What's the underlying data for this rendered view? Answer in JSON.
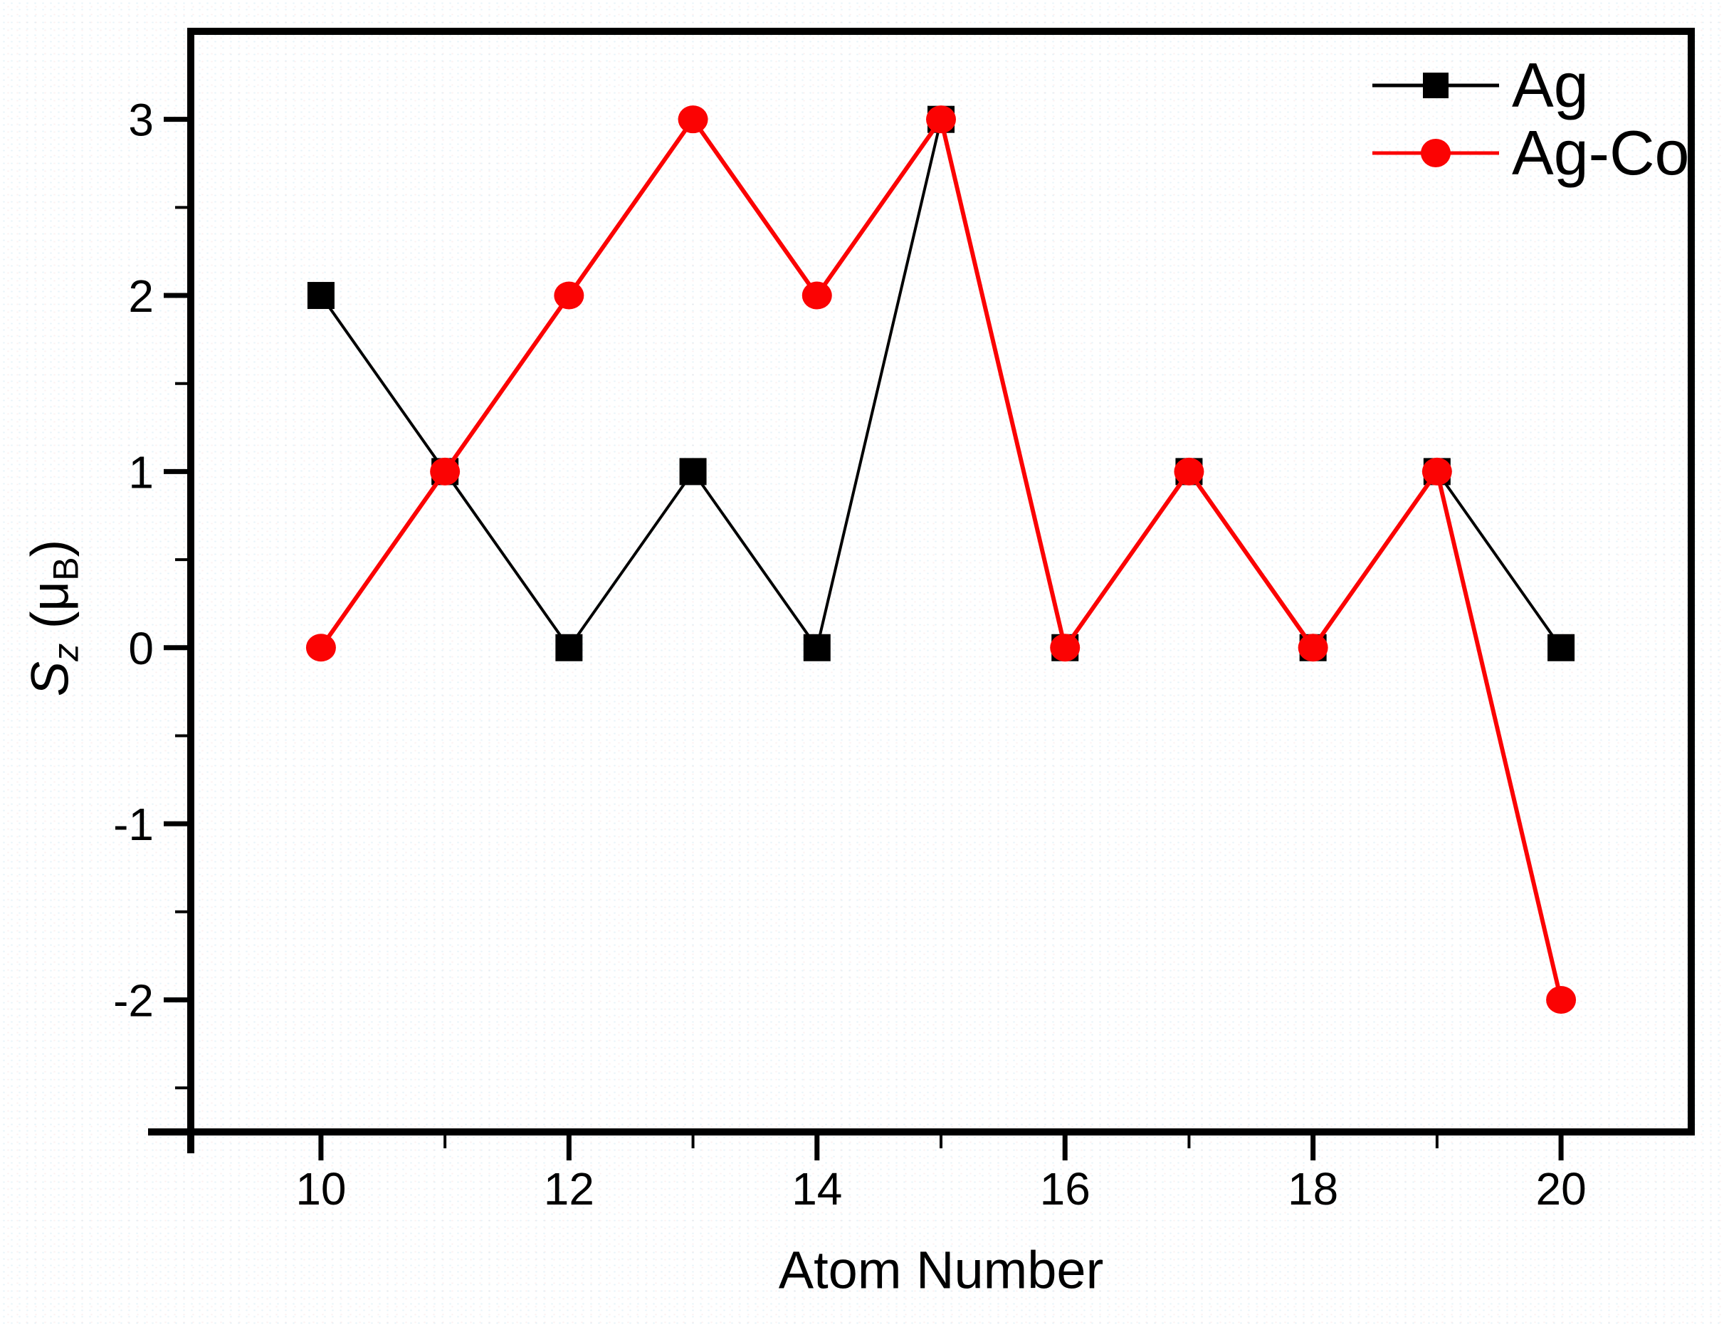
{
  "chart_data": {
    "type": "line",
    "title": "",
    "xlabel": "Atom Number",
    "ylabel": "Sz (μB)",
    "ylabel_parts": {
      "symbol": "S",
      "symbol_sub": "z",
      "unit_open": " (",
      "unit_mu": "μ",
      "unit_sub": "B",
      "unit_close": ")"
    },
    "x": [
      10,
      11,
      12,
      13,
      14,
      15,
      16,
      17,
      18,
      19,
      20
    ],
    "series": [
      {
        "name": "Ag",
        "color": "#000000",
        "marker": "square",
        "line_width": 4,
        "values": [
          2,
          1,
          0,
          1,
          0,
          3,
          0,
          1,
          0,
          1,
          0
        ]
      },
      {
        "name": "Ag-Co",
        "color": "#fb0303",
        "marker": "circle",
        "line_width": 6,
        "values": [
          0,
          1,
          2,
          3,
          2,
          3,
          0,
          1,
          0,
          1,
          -2
        ]
      }
    ],
    "xlim": [
      8.95,
      21.05
    ],
    "ylim": [
      -2.75,
      3.5
    ],
    "x_major_ticks": [
      10,
      12,
      14,
      16,
      18,
      20
    ],
    "x_minor_ticks": [
      11,
      13,
      15,
      17,
      19
    ],
    "y_major_ticks": [
      3,
      2,
      1,
      0,
      -1,
      -2
    ],
    "y_minor_ticks": [
      2.5,
      1.5,
      0.5,
      -0.5,
      -1.5,
      -2.5
    ],
    "legend": {
      "position": "top-right",
      "entries": [
        "Ag",
        "Ag-Co"
      ]
    },
    "grid": false,
    "axis_color": "#000000",
    "background": "#ffffff"
  }
}
